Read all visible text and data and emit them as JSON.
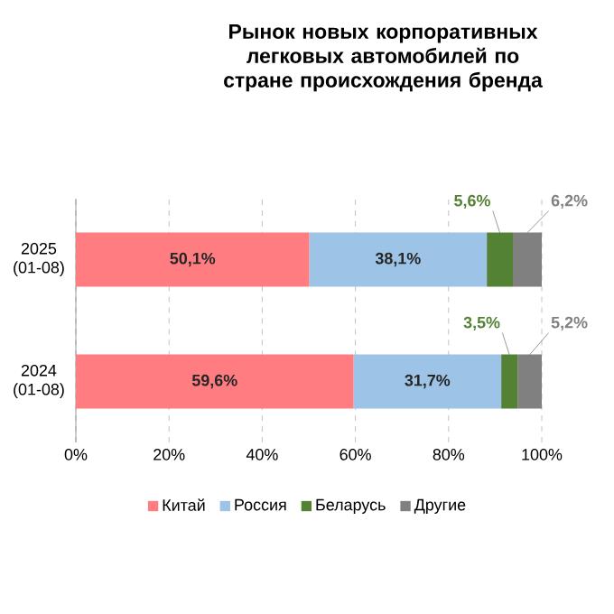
{
  "chart_data": {
    "type": "bar",
    "orientation": "horizontal",
    "stacked": true,
    "title": "Рынок новых корпоративных легковых автомобилей по стране происхождения бренда",
    "categories": [
      "2025 (01-08)",
      "2024 (01-08)"
    ],
    "series": [
      {
        "name": "Китай",
        "color": "#ff7c80",
        "values": [
          50.1,
          59.6
        ],
        "value_labels": [
          "50,1%",
          "59,6%"
        ]
      },
      {
        "name": "Россия",
        "color": "#9dc3e6",
        "values": [
          38.1,
          31.7
        ],
        "value_labels": [
          "38,1%",
          "31,7%"
        ]
      },
      {
        "name": "Беларусь",
        "color": "#548235",
        "values": [
          5.6,
          3.5
        ],
        "value_labels": [
          "5,6%",
          "3,5%"
        ]
      },
      {
        "name": "Другие",
        "color": "#808080",
        "values": [
          6.2,
          5.2
        ],
        "value_labels": [
          "6,2%",
          "5,2%"
        ]
      }
    ],
    "xlim": [
      0,
      100
    ],
    "xticks": [
      {
        "value": 0,
        "label": "0%"
      },
      {
        "value": 20,
        "label": "20%"
      },
      {
        "value": 40,
        "label": "40%"
      },
      {
        "value": 60,
        "label": "60%"
      },
      {
        "value": 80,
        "label": "80%"
      },
      {
        "value": 100,
        "label": "100%"
      }
    ],
    "grid": "x",
    "legend": "bottom"
  }
}
